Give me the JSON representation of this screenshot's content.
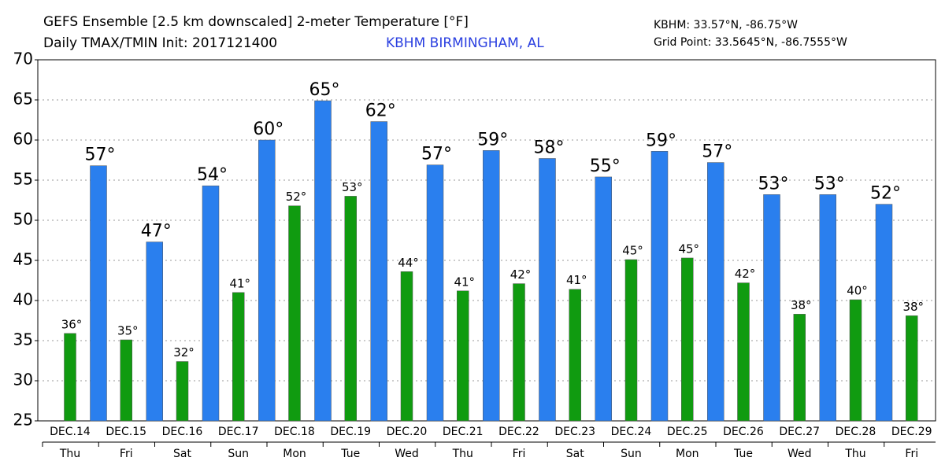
{
  "chart_data": {
    "type": "bar",
    "title": "GEFS Ensemble [2.5 km downscaled] 2-meter Temperature [°F]",
    "subtitle": "Daily TMAX/TMIN Init: 2017121400",
    "location": "KBHM BIRMINGHAM, AL",
    "station": "KBHM: 33.57°N, -86.75°W",
    "grid_point": "Grid Point: 33.5645°N, -86.7555°W",
    "categories": [
      "DEC.14",
      "DEC.15",
      "DEC.16",
      "DEC.17",
      "DEC.18",
      "DEC.19",
      "DEC.20",
      "DEC.21",
      "DEC.22",
      "DEC.23",
      "DEC.24",
      "DEC.25",
      "DEC.26",
      "DEC.27",
      "DEC.28",
      "DEC.29"
    ],
    "weekdays": [
      "Thu",
      "Fri",
      "Sat",
      "Sun",
      "Mon",
      "Tue",
      "Wed",
      "Thu",
      "Fri",
      "Sat",
      "Sun",
      "Mon",
      "Tue",
      "Wed",
      "Thu",
      "Fri"
    ],
    "series": [
      {
        "color": "#109b10",
        "values": [
          35.9,
          35.1,
          32.4,
          41.0,
          51.8,
          53.0,
          43.6,
          41.2,
          42.1,
          41.4,
          45.1,
          45.3,
          42.2,
          38.3,
          40.1,
          38.1
        ],
        "value_labels": [
          "36°",
          "35°",
          "32°",
          "41°",
          "52°",
          "53°",
          "44°",
          "41°",
          "42°",
          "41°",
          "45°",
          "45°",
          "42°",
          "38°",
          "40°",
          "38°"
        ]
      },
      {
        "color": "#2a7fee",
        "values": [
          56.8,
          47.3,
          54.3,
          60.0,
          64.9,
          62.3,
          56.9,
          58.7,
          57.7,
          55.4,
          58.6,
          57.2,
          53.2,
          53.2,
          52.0,
          null
        ],
        "value_labels": [
          "57°",
          "47°",
          "54°",
          "60°",
          "65°",
          "62°",
          "57°",
          "59°",
          "58°",
          "55°",
          "59°",
          "57°",
          "53°",
          "53°",
          "52°",
          null
        ]
      }
    ],
    "ylim": [
      25,
      70
    ],
    "yticks": [
      25,
      30,
      35,
      40,
      45,
      50,
      55,
      60,
      65,
      70
    ],
    "grid": true
  }
}
